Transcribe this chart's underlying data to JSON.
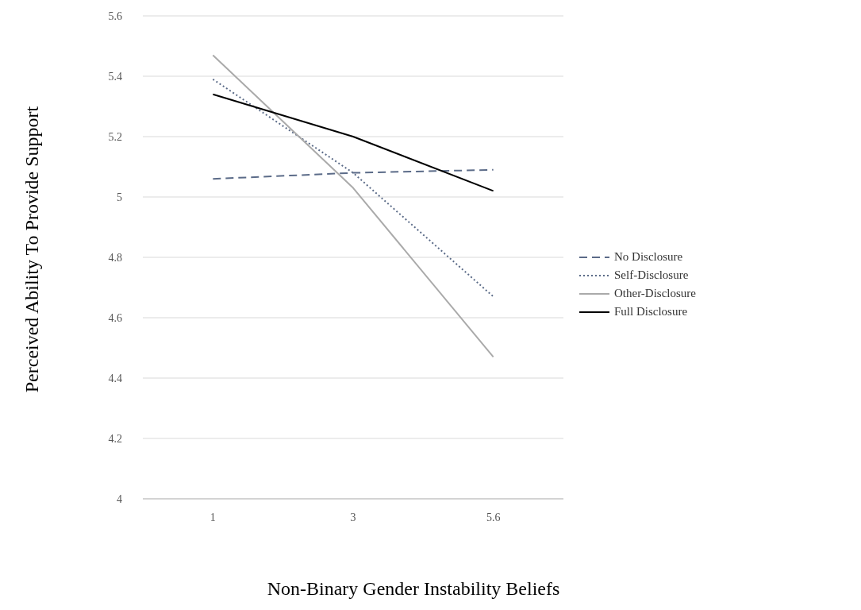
{
  "chart_data": {
    "type": "line",
    "xlabel": "Non-Binary Gender Instability Beliefs",
    "ylabel": "Perceived Ability To Provide Support",
    "categories": [
      "1",
      "3",
      "5.6"
    ],
    "series": [
      {
        "name": "No Disclosure",
        "color": "#5b6b88",
        "line_style": "dashed",
        "values": [
          5.06,
          5.08,
          5.09
        ]
      },
      {
        "name": "Self-Disclosure",
        "color": "#5b6b88",
        "line_style": "dotted",
        "values": [
          5.39,
          5.08,
          4.67
        ]
      },
      {
        "name": "Other-Disclosure",
        "color": "#aaaaaa",
        "line_style": "solid",
        "values": [
          5.47,
          5.03,
          4.47
        ]
      },
      {
        "name": "Full Disclosure",
        "color": "#000000",
        "line_style": "solid",
        "values": [
          5.34,
          5.2,
          5.02
        ]
      }
    ],
    "ylim": [
      4,
      5.6
    ],
    "yticks": [
      4,
      4.2,
      4.4,
      4.6,
      4.8,
      5,
      5.2,
      5.4,
      5.6
    ],
    "grid": "y",
    "legend": "right",
    "marker": "none"
  }
}
